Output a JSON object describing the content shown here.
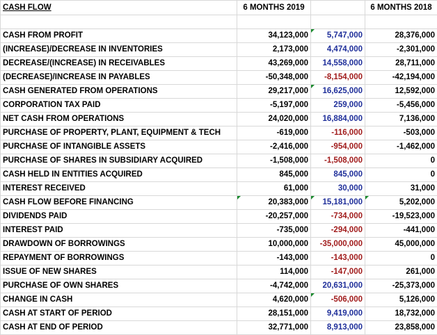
{
  "header": {
    "title": "CASH FLOW",
    "col_2019": "6 MONTHS 2019",
    "col_2018": "6 MONTHS 2018"
  },
  "rows": [
    {
      "label": "CASH FROM PROFIT",
      "v2019": "34,123,000",
      "alt": "5,747,000",
      "v2018": "28,376,000"
    },
    {
      "label": "(INCREASE)/DECREASE IN INVENTORIES",
      "v2019": "2,173,000",
      "alt": "4,474,000",
      "v2018": "-2,301,000"
    },
    {
      "label": "DECREASE/(INCREASE) IN RECEIVABLES",
      "v2019": "43,269,000",
      "alt": "14,558,000",
      "v2018": "28,711,000"
    },
    {
      "label": "(DECREASE)/INCREASE IN PAYABLES",
      "v2019": "-50,348,000",
      "alt": "-8,154,000",
      "v2018": "-42,194,000"
    },
    {
      "label": "CASH GENERATED FROM OPERATIONS",
      "v2019": "29,217,000",
      "alt": "16,625,000",
      "v2018": "12,592,000"
    },
    {
      "label": "CORPORATION TAX PAID",
      "v2019": "-5,197,000",
      "alt": "259,000",
      "v2018": "-5,456,000"
    },
    {
      "label": "NET CASH FROM OPERATIONS",
      "v2019": "24,020,000",
      "alt": "16,884,000",
      "v2018": "7,136,000"
    },
    {
      "label": "PURCHASE OF PROPERTY, PLANT, EQUIPMENT & TECH",
      "v2019": "-619,000",
      "alt": "-116,000",
      "v2018": "-503,000"
    },
    {
      "label": "PURCHASE OF INTANGIBLE ASSETS",
      "v2019": "-2,416,000",
      "alt": "-954,000",
      "v2018": "-1,462,000"
    },
    {
      "label": "PURCHASE OF SHARES IN SUBSIDIARY ACQUIRED",
      "v2019": "-1,508,000",
      "alt": "-1,508,000",
      "v2018": "0"
    },
    {
      "label": "CASH HELD IN ENTITIES ACQUIRED",
      "v2019": "845,000",
      "alt": "845,000",
      "v2018": "0"
    },
    {
      "label": "INTEREST RECEIVED",
      "v2019": "61,000",
      "alt": "30,000",
      "v2018": "31,000"
    },
    {
      "label": "CASH FLOW BEFORE FINANCING",
      "v2019": "20,383,000",
      "alt": "15,181,000",
      "v2018": "5,202,000"
    },
    {
      "label": "DIVIDENDS PAID",
      "v2019": "-20,257,000",
      "alt": "-734,000",
      "v2018": "-19,523,000"
    },
    {
      "label": "INTEREST PAID",
      "v2019": "-735,000",
      "alt": "-294,000",
      "v2018": "-441,000"
    },
    {
      "label": "DRAWDOWN OF BORROWINGS",
      "v2019": "10,000,000",
      "alt": "-35,000,000",
      "v2018": "45,000,000"
    },
    {
      "label": "REPAYMENT OF BORROWINGS",
      "v2019": "-143,000",
      "alt": "-143,000",
      "v2018": "0"
    },
    {
      "label": "ISSUE OF NEW SHARES",
      "v2019": "114,000",
      "alt": "-147,000",
      "v2018": "261,000"
    },
    {
      "label": "PURCHASE OF OWN SHARES",
      "v2019": "-4,742,000",
      "alt": "20,631,000",
      "v2018": "-25,373,000"
    },
    {
      "label": "CHANGE IN CASH",
      "v2019": "4,620,000",
      "alt": "-506,000",
      "v2018": "5,126,000"
    },
    {
      "label": "CASH AT START OF PERIOD",
      "v2019": "28,151,000",
      "alt": "9,419,000",
      "v2018": "18,732,000"
    },
    {
      "label": "CASH AT END OF PERIOD",
      "v2019": "32,771,000",
      "alt": "8,913,000",
      "v2018": "23,858,000"
    }
  ],
  "colors": {
    "positive": "#1f2f9a",
    "negative": "#a11c1c",
    "comment_marker": "#1b8a2e"
  }
}
